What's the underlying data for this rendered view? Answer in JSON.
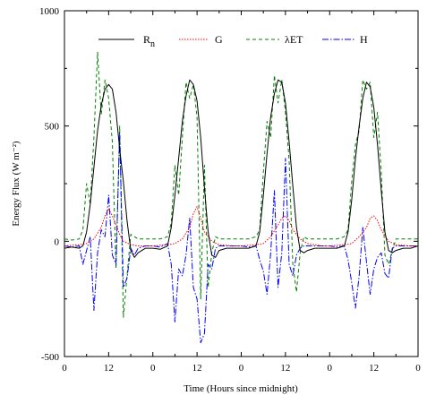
{
  "chart_data": {
    "type": "line",
    "title": "",
    "xlabel": "Time (Hours since midnight)",
    "ylabel": "Energy Flux (W m⁻²)",
    "ylim": [
      -500,
      1000
    ],
    "xlim": [
      0,
      96
    ],
    "x_tick_values": [
      0,
      6,
      12,
      18,
      24,
      30,
      36,
      42,
      48,
      54,
      60,
      66,
      72,
      78,
      84,
      90,
      96
    ],
    "x_tick_labels": [
      "0",
      "12",
      "0",
      "12",
      "0",
      "12",
      "0",
      "12",
      "0"
    ],
    "x_labeled_positions": [
      0,
      12,
      24,
      36,
      48,
      60,
      72,
      84,
      96
    ],
    "y_ticks": [
      -500,
      0,
      500,
      1000
    ],
    "legend": {
      "placement": "top"
    },
    "series": [
      {
        "name": "R_n",
        "name_main": "R",
        "name_sub": "n",
        "color": "#000000",
        "dash": "solid",
        "x": [
          0,
          2,
          4,
          5,
          6,
          7,
          8,
          9,
          10,
          11,
          12,
          13,
          14,
          15,
          16,
          17,
          18,
          19,
          20,
          22,
          24,
          26,
          28,
          29,
          30,
          31,
          32,
          33,
          34,
          35,
          36,
          37,
          38,
          39,
          40,
          41,
          42,
          44,
          46,
          48,
          50,
          52,
          53,
          54,
          55,
          56,
          57,
          58,
          59,
          60,
          61,
          62,
          63,
          64,
          65,
          66,
          68,
          70,
          72,
          74,
          76,
          77,
          78,
          79,
          80,
          81,
          82,
          83,
          84,
          85,
          86,
          87,
          88,
          89,
          90,
          92,
          94,
          96
        ],
        "y": [
          -30,
          -25,
          -30,
          -20,
          40,
          160,
          320,
          480,
          590,
          660,
          680,
          660,
          560,
          400,
          260,
          90,
          -40,
          -70,
          -50,
          -30,
          -30,
          -35,
          -20,
          60,
          200,
          360,
          520,
          630,
          700,
          680,
          610,
          450,
          230,
          40,
          -60,
          -70,
          -40,
          -30,
          -30,
          -30,
          -30,
          -20,
          40,
          200,
          380,
          540,
          640,
          700,
          690,
          600,
          430,
          240,
          60,
          -40,
          -50,
          -40,
          -30,
          -30,
          -30,
          -30,
          -20,
          40,
          180,
          360,
          500,
          620,
          690,
          670,
          580,
          420,
          220,
          40,
          -40,
          -50,
          -40,
          -30,
          -30,
          -20
        ]
      },
      {
        "name": "G",
        "color": "#ff0000",
        "dash": "1.5,1.5",
        "x": [
          0,
          4,
          6,
          8,
          10,
          11,
          12,
          13,
          14,
          15,
          16,
          18,
          20,
          24,
          28,
          30,
          32,
          34,
          35,
          36,
          37,
          38,
          40,
          42,
          46,
          48,
          52,
          54,
          56,
          58,
          59,
          60,
          61,
          62,
          64,
          66,
          70,
          72,
          76,
          78,
          80,
          82,
          83,
          84,
          85,
          86,
          88,
          90,
          94,
          96
        ],
        "y": [
          -20,
          -15,
          -10,
          10,
          60,
          110,
          140,
          110,
          70,
          30,
          0,
          -15,
          -20,
          -20,
          -15,
          -10,
          10,
          60,
          120,
          150,
          100,
          40,
          0,
          -15,
          -20,
          -20,
          -15,
          -10,
          20,
          70,
          100,
          110,
          90,
          50,
          10,
          -10,
          -20,
          -20,
          -15,
          -10,
          20,
          60,
          100,
          110,
          90,
          50,
          0,
          -15,
          -20,
          -20
        ]
      },
      {
        "name": "λET",
        "color": "#008000",
        "dash": "4,3",
        "x": [
          0,
          2,
          4,
          5,
          6,
          7,
          8,
          9,
          10,
          11,
          12,
          13,
          14,
          15,
          16,
          17,
          18,
          19,
          20,
          22,
          24,
          26,
          28,
          29,
          30,
          31,
          32,
          33,
          34,
          35,
          36,
          37,
          38,
          39,
          40,
          41,
          42,
          44,
          46,
          48,
          50,
          52,
          53,
          54,
          55,
          56,
          57,
          58,
          59,
          60,
          61,
          62,
          63,
          64,
          65,
          66,
          68,
          70,
          72,
          74,
          76,
          77,
          78,
          79,
          80,
          81,
          82,
          83,
          84,
          85,
          86,
          87,
          88,
          89,
          90,
          92,
          94,
          96
        ],
        "y": [
          10,
          5,
          10,
          50,
          250,
          160,
          450,
          820,
          550,
          700,
          620,
          430,
          -120,
          500,
          -330,
          -150,
          30,
          20,
          10,
          10,
          10,
          10,
          20,
          80,
          330,
          200,
          450,
          690,
          620,
          680,
          540,
          -250,
          330,
          -200,
          -50,
          20,
          10,
          10,
          10,
          10,
          10,
          20,
          50,
          300,
          520,
          450,
          720,
          600,
          700,
          560,
          350,
          -100,
          -220,
          -50,
          20,
          10,
          10,
          10,
          10,
          10,
          20,
          50,
          260,
          420,
          480,
          700,
          660,
          690,
          450,
          560,
          300,
          -60,
          -100,
          -40,
          10,
          10,
          10,
          10
        ]
      },
      {
        "name": "H",
        "color": "#0000ff",
        "dash": "7,2,1.5,2",
        "x": [
          0,
          2,
          4,
          5,
          6,
          7,
          8,
          9,
          10,
          11,
          12,
          13,
          14,
          15,
          16,
          17,
          18,
          19,
          20,
          22,
          24,
          26,
          28,
          29,
          30,
          31,
          32,
          33,
          34,
          35,
          36,
          37,
          38,
          39,
          40,
          41,
          42,
          44,
          46,
          48,
          50,
          52,
          53,
          54,
          55,
          56,
          57,
          58,
          59,
          60,
          61,
          62,
          63,
          64,
          65,
          66,
          68,
          70,
          72,
          74,
          76,
          77,
          78,
          79,
          80,
          81,
          82,
          83,
          84,
          85,
          86,
          87,
          88,
          89,
          90,
          92,
          94,
          96
        ],
        "y": [
          -20,
          -25,
          -20,
          -100,
          -40,
          20,
          -300,
          -50,
          50,
          20,
          200,
          -60,
          -100,
          470,
          -200,
          -160,
          -30,
          -60,
          -30,
          -20,
          -20,
          -25,
          -10,
          -100,
          -350,
          -120,
          -150,
          -60,
          100,
          -200,
          -250,
          -440,
          -400,
          -100,
          -120,
          -30,
          -20,
          -20,
          -20,
          -20,
          -25,
          -20,
          -80,
          -130,
          -230,
          -50,
          220,
          -200,
          -50,
          360,
          -100,
          -150,
          -60,
          -30,
          -20,
          -20,
          -20,
          -20,
          -20,
          -25,
          -20,
          -80,
          -180,
          -290,
          -150,
          60,
          -90,
          -230,
          -120,
          -70,
          -50,
          -140,
          -160,
          -30,
          -20,
          -20,
          -20,
          -20
        ]
      }
    ]
  }
}
